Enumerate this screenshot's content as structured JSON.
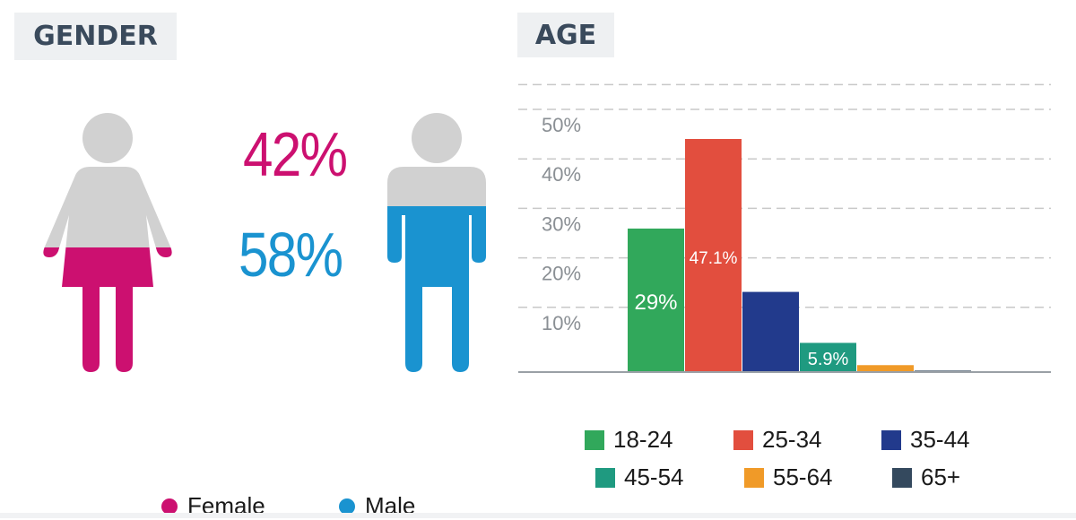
{
  "gender": {
    "title": "GENDER",
    "female": {
      "label": "Female",
      "percent": "42%",
      "value": 42,
      "color": "#cc1070"
    },
    "male": {
      "label": "Male",
      "percent": "58%",
      "value": 58,
      "color": "#1a93d0"
    },
    "icon_gray": "#d1d1d1"
  },
  "age": {
    "title": "AGE"
  },
  "chart_data": {
    "type": "bar",
    "title": "AGE",
    "categories": [
      "18-24",
      "25-34",
      "35-44",
      "45-54",
      "55-64",
      "65+"
    ],
    "values": [
      29,
      47.1,
      16.2,
      5.9,
      1.4,
      0.3
    ],
    "data_labels": [
      "29%",
      "47.1%",
      "",
      "5.9%",
      "",
      ""
    ],
    "colors": [
      "#31a85b",
      "#e24e3e",
      "#223a8c",
      "#1f9a80",
      "#f09a28",
      "#34495e"
    ],
    "y_ticks": [
      10,
      20,
      30,
      40,
      50
    ],
    "y_tick_labels": [
      "10%",
      "20%",
      "30%",
      "40%",
      "50%"
    ],
    "ylim": [
      0,
      50
    ],
    "grid": true,
    "legend_position": "bottom",
    "xlabel": "",
    "ylabel": ""
  }
}
